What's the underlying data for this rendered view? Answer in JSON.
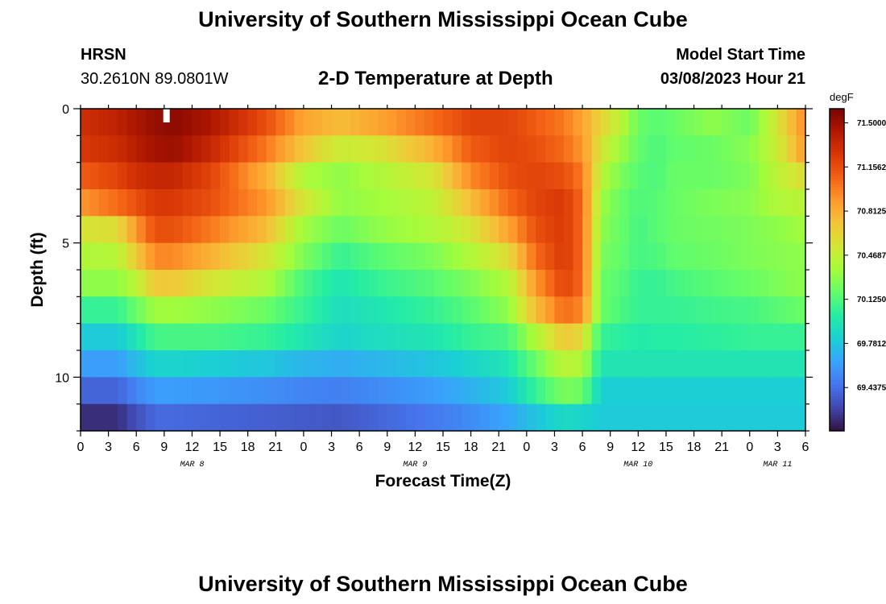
{
  "page": {
    "title": "University of Southern Mississippi Ocean Cube",
    "footer_title": "University of Southern Mississippi Ocean Cube",
    "station": "HRSN",
    "coords": "30.2610N  89.0801W",
    "subtitle": "2-D Temperature at Depth",
    "model_start_label": "Model Start Time",
    "model_start_value": "03/08/2023 Hour 21"
  },
  "chart_data": {
    "type": "heatmap",
    "title": "2-D Temperature at Depth",
    "xlabel": "Forecast Time(Z)",
    "ylabel": "Depth (ft)",
    "x_hours": [
      0,
      3,
      6,
      9,
      12,
      15,
      18,
      21,
      24,
      27,
      30,
      33,
      36,
      39,
      42,
      45,
      48,
      51,
      54,
      57,
      60,
      63,
      66,
      69,
      72,
      75,
      78
    ],
    "x_tick_labels": [
      "0",
      "3",
      "6",
      "9",
      "12",
      "15",
      "18",
      "21",
      "0",
      "3",
      "6",
      "9",
      "12",
      "15",
      "18",
      "21",
      "0",
      "3",
      "6",
      "9",
      "12",
      "15",
      "18",
      "21",
      "0",
      "3",
      "6"
    ],
    "date_labels": [
      {
        "label": "MAR 8",
        "hour": 12
      },
      {
        "label": "MAR 9",
        "hour": 36
      },
      {
        "label": "MAR 10",
        "hour": 60
      },
      {
        "label": "MAR 11",
        "hour": 75
      }
    ],
    "depth_range": [
      0,
      12
    ],
    "y_major_ticks": [
      0,
      5,
      10
    ],
    "y_tick_labels": [
      "0",
      "5",
      "10"
    ],
    "y_minor_step": 1,
    "colorbar": {
      "units": "degF",
      "vmin": 69.1,
      "vmax": 71.61,
      "tick_values": [
        71.5,
        71.15625,
        70.8125,
        70.46875,
        70.125,
        69.78125,
        69.4375
      ],
      "tick_labels": [
        "71.50000",
        "71.15625",
        "70.81250",
        "70.46875",
        "70.12500",
        "69.78125",
        "69.43750"
      ],
      "colors": [
        "#30123b",
        "#4145ab",
        "#4675ed",
        "#39a2fc",
        "#1bcfd4",
        "#24eca6",
        "#61fc6c",
        "#a4fc3b",
        "#d1e834",
        "#f3c63a",
        "#fe9b2d",
        "#f36315",
        "#d93806",
        "#b11901",
        "#7a0402"
      ]
    },
    "depth_layers_ft": [
      0.5,
      1.5,
      2.5,
      3.5,
      4.5,
      5.5,
      6.5,
      7.5,
      8.5,
      9.5,
      10.5,
      11.5
    ],
    "time_knots_hours": [
      0,
      4,
      6,
      8,
      10,
      14,
      20,
      24,
      28,
      32,
      38,
      42,
      46,
      49,
      52,
      54,
      56,
      58,
      60,
      62,
      64,
      68,
      72,
      75,
      78
    ],
    "temperature_degF": [
      [
        71.3,
        71.38,
        71.45,
        71.52,
        71.55,
        71.45,
        71.15,
        70.85,
        70.75,
        70.85,
        71.05,
        71.2,
        71.2,
        71.1,
        71.0,
        70.85,
        70.65,
        70.45,
        70.2,
        70.15,
        70.2,
        70.3,
        70.2,
        70.55,
        70.95
      ],
      [
        71.25,
        71.32,
        71.4,
        71.48,
        71.5,
        71.35,
        71.0,
        70.7,
        70.5,
        70.55,
        70.8,
        71.1,
        71.2,
        71.15,
        71.05,
        70.9,
        70.55,
        70.35,
        70.18,
        70.12,
        70.18,
        70.2,
        70.28,
        70.5,
        70.9
      ],
      [
        71.1,
        71.2,
        71.3,
        71.35,
        71.35,
        71.2,
        70.8,
        70.4,
        70.3,
        70.4,
        70.55,
        70.95,
        71.15,
        71.2,
        71.15,
        71.0,
        70.45,
        70.25,
        70.15,
        70.12,
        70.2,
        70.2,
        70.25,
        70.45,
        70.6
      ],
      [
        70.9,
        71.05,
        71.15,
        71.25,
        71.25,
        71.15,
        70.9,
        70.55,
        70.3,
        70.35,
        70.45,
        70.75,
        71.05,
        71.2,
        71.25,
        71.05,
        70.35,
        70.2,
        70.12,
        70.15,
        70.2,
        70.25,
        70.28,
        70.4,
        70.45
      ],
      [
        70.55,
        70.6,
        70.9,
        71.15,
        71.15,
        71.0,
        70.75,
        70.35,
        70.2,
        70.3,
        70.4,
        70.55,
        70.85,
        71.15,
        71.25,
        71.05,
        70.3,
        70.2,
        70.1,
        70.15,
        70.2,
        70.22,
        70.25,
        70.3,
        70.35
      ],
      [
        70.4,
        70.42,
        70.7,
        70.95,
        70.95,
        70.8,
        70.55,
        70.25,
        70.05,
        70.15,
        70.25,
        70.4,
        70.6,
        71.05,
        71.25,
        71.05,
        70.25,
        70.18,
        70.1,
        70.12,
        70.18,
        70.2,
        70.25,
        70.28,
        70.3
      ],
      [
        70.3,
        70.3,
        70.45,
        70.7,
        70.7,
        70.55,
        70.4,
        70.1,
        69.95,
        70.05,
        70.15,
        70.25,
        70.4,
        70.9,
        71.2,
        71.05,
        70.2,
        70.15,
        70.05,
        70.05,
        70.1,
        70.15,
        70.2,
        70.25,
        70.3
      ],
      [
        70.05,
        70.05,
        70.2,
        70.35,
        70.35,
        70.3,
        70.2,
        70.05,
        69.9,
        69.95,
        70.05,
        70.15,
        70.3,
        70.75,
        71.05,
        70.95,
        70.2,
        70.12,
        70.05,
        70.05,
        70.05,
        70.08,
        70.1,
        70.15,
        70.2
      ],
      [
        69.8,
        69.8,
        69.95,
        70.1,
        70.1,
        70.1,
        70.05,
        69.95,
        69.85,
        69.9,
        69.95,
        70.05,
        70.1,
        70.4,
        70.7,
        70.6,
        70.05,
        70.02,
        69.98,
        70.0,
        70.0,
        70.02,
        70.05,
        70.05,
        70.05
      ],
      [
        69.62,
        69.62,
        69.75,
        69.85,
        69.85,
        69.82,
        69.78,
        69.72,
        69.68,
        69.72,
        69.78,
        69.85,
        69.95,
        70.2,
        70.45,
        70.4,
        69.95,
        69.95,
        69.95,
        69.95,
        69.95,
        69.95,
        69.95,
        69.95,
        69.95
      ],
      [
        69.4,
        69.4,
        69.52,
        69.62,
        69.62,
        69.6,
        69.56,
        69.52,
        69.5,
        69.55,
        69.62,
        69.7,
        69.8,
        70.05,
        70.25,
        70.2,
        69.82,
        69.82,
        69.82,
        69.82,
        69.82,
        69.82,
        69.82,
        69.82,
        69.82
      ],
      [
        69.2,
        69.2,
        69.32,
        69.42,
        69.42,
        69.4,
        69.38,
        69.36,
        69.35,
        69.4,
        69.48,
        69.55,
        69.65,
        69.78,
        69.88,
        69.85,
        69.8,
        69.8,
        69.8,
        69.8,
        69.8,
        69.8,
        69.8,
        69.8,
        69.8
      ]
    ]
  }
}
